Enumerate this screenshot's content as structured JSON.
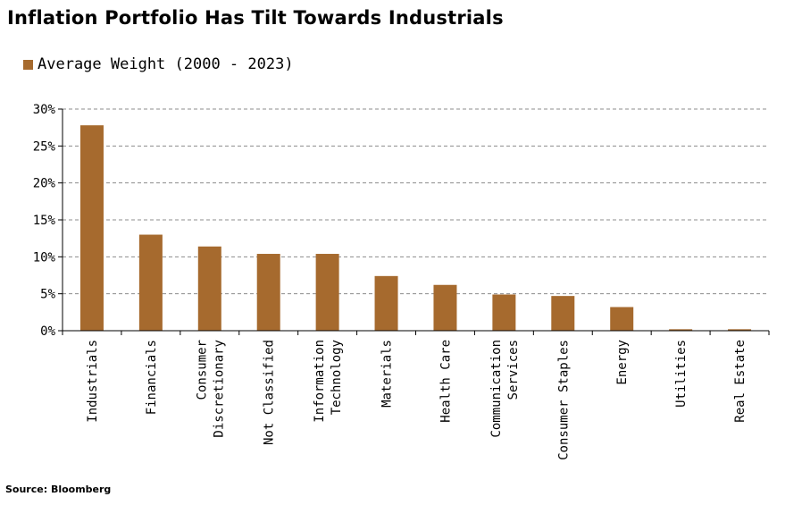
{
  "chart_data": {
    "type": "bar",
    "title": "Inflation Portfolio Has Tilt Towards Industrials",
    "xlabel": "",
    "ylabel": "",
    "categories": [
      "Industrials",
      "Financials",
      "Consumer Discretionary",
      "Not Classified",
      "Information Technology",
      "Materials",
      "Health Care",
      "Communication Services",
      "Consumer Staples",
      "Energy",
      "Utilities",
      "Real Estate"
    ],
    "category_lines": [
      [
        "Industrials"
      ],
      [
        "Financials"
      ],
      [
        "Consumer",
        "Discretionary"
      ],
      [
        "Not Classified"
      ],
      [
        "Information",
        "Technology"
      ],
      [
        "Materials"
      ],
      [
        "Health Care"
      ],
      [
        "Communication",
        "Services"
      ],
      [
        "Consumer Staples"
      ],
      [
        "Energy"
      ],
      [
        "Utilities"
      ],
      [
        "Real Estate"
      ]
    ],
    "series": [
      {
        "name": "Average Weight (2000 - 2023)",
        "color": "#A66A2E",
        "values": [
          27.8,
          13.0,
          11.4,
          10.4,
          10.4,
          7.4,
          6.2,
          4.9,
          4.7,
          3.2,
          0.2,
          0.2
        ]
      }
    ],
    "ylim": [
      0,
      30
    ],
    "yticks": [
      0,
      5,
      10,
      15,
      20,
      25,
      30
    ],
    "ytick_labels": [
      "0%",
      "5%",
      "10%",
      "15%",
      "20%",
      "25%",
      "30%"
    ],
    "grid": true,
    "legend_position": "top-left"
  },
  "source": "Source: Bloomberg"
}
